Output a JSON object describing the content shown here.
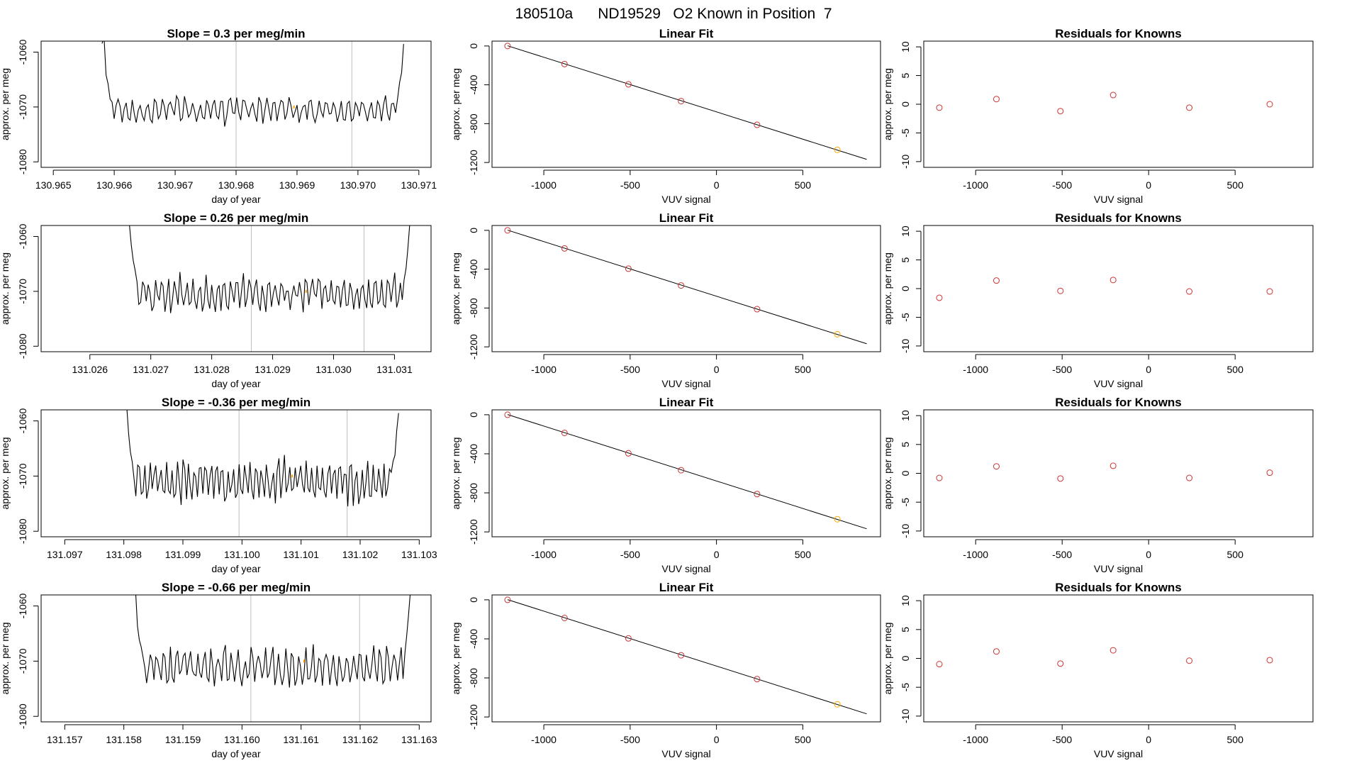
{
  "figure_title": "180510a      ND19529   O2 Known in Position  7",
  "colors": {
    "line": "#000000",
    "known_point": "#cd3333",
    "current_known": "#ffa500",
    "guide_line": "#bebebe",
    "frame": "#000000"
  },
  "chart_data": [
    {
      "type": "line",
      "row": 1,
      "panel": "time-series",
      "title": "Slope =  0.3  per meg/min",
      "xlabel": "day of year",
      "ylabel": "approx. per meg",
      "xlim": [
        130.9648,
        130.9712
      ],
      "ylim": [
        -1081,
        -1058
      ],
      "xticks": [
        130.965,
        130.966,
        130.967,
        130.968,
        130.969,
        130.97,
        130.971
      ],
      "xtick_labels": [
        "130.965",
        "130.966",
        "130.967",
        "130.968",
        "130.969",
        "130.970",
        "130.971"
      ],
      "yticks": [
        -1080,
        -1070,
        -1060
      ],
      "ytick_labels": [
        "-1080",
        "-1070",
        "-1060"
      ],
      "vlines": [
        130.968,
        130.9699
      ],
      "marker": {
        "x": 130.96895,
        "y": -1070
      },
      "trace": {
        "x_start": 130.9658,
        "x_end": 130.97075,
        "start_curve": [
          -1058,
          -1058,
          -1064,
          -1066
        ],
        "end_curve": [
          -1068,
          -1066,
          -1063,
          -1058
        ],
        "base": -1070.5,
        "amp": 2.4,
        "freq": 1.0,
        "seed": 3
      }
    },
    {
      "type": "line",
      "row": 1,
      "panel": "linear-fit",
      "title": "Linear Fit",
      "xlabel": "VUV signal",
      "ylabel": "approx. per meg",
      "xlim": [
        -1300,
        950
      ],
      "ylim": [
        -1250,
        50
      ],
      "xticks": [
        -1000,
        -500,
        0,
        500
      ],
      "xtick_labels": [
        "-1000",
        "-500",
        "0",
        "500"
      ],
      "yticks": [
        -1200,
        -800,
        -400,
        0
      ],
      "ytick_labels": [
        "-1200",
        "-800",
        "-400",
        "0"
      ],
      "fit_line": {
        "x": [
          -1210,
          870
        ],
        "y": [
          2,
          -1168
        ]
      },
      "points": {
        "x": [
          -1210,
          -880,
          -510,
          -205,
          235,
          700
        ],
        "y": [
          0,
          -186,
          -395,
          -568,
          -812,
          -1070
        ]
      },
      "current_index": 5
    },
    {
      "type": "scatter",
      "row": 1,
      "panel": "residuals",
      "title": "Residuals for Knowns",
      "xlabel": "VUV signal",
      "ylabel": "approx. per meg",
      "xlim": [
        -1300,
        950
      ],
      "ylim": [
        -11,
        11
      ],
      "xticks": [
        -1000,
        -500,
        0,
        500
      ],
      "xtick_labels": [
        "-1000",
        "-500",
        "0",
        "500"
      ],
      "yticks": [
        -10,
        -5,
        0,
        5,
        10
      ],
      "ytick_labels": [
        "-10",
        "-5",
        "0",
        "5",
        "10"
      ],
      "points": {
        "x": [
          -1210,
          -880,
          -510,
          -205,
          235,
          700
        ],
        "y": [
          -0.6,
          0.9,
          -1.2,
          1.6,
          -0.6,
          0.0
        ]
      }
    },
    {
      "type": "line",
      "row": 2,
      "panel": "time-series",
      "title": "Slope =  0.26  per meg/min",
      "xlabel": "day of year",
      "ylabel": "approx. per meg",
      "xlim": [
        131.0252,
        131.0316
      ],
      "ylim": [
        -1081,
        -1058
      ],
      "xticks": [
        131.026,
        131.027,
        131.028,
        131.029,
        131.03,
        131.031
      ],
      "xtick_labels": [
        "131.026",
        "131.027",
        "131.028",
        "131.029",
        "131.030",
        "131.031"
      ],
      "yticks": [
        -1080,
        -1070,
        -1060
      ],
      "ytick_labels": [
        "-1080",
        "-1070",
        "-1060"
      ],
      "vlines": [
        131.02865,
        131.0305
      ],
      "marker": {
        "x": 131.02955,
        "y": -1070
      },
      "trace": {
        "x_start": 131.02665,
        "x_end": 131.03125,
        "start_curve": [
          -1058,
          -1061,
          -1064,
          -1066
        ],
        "end_curve": [
          -1068,
          -1066,
          -1062,
          -1058
        ],
        "base": -1070.5,
        "amp": 3.2,
        "freq": 1.1,
        "seed": 7
      }
    },
    {
      "type": "line",
      "row": 2,
      "panel": "linear-fit",
      "title": "Linear Fit",
      "xlabel": "VUV signal",
      "ylabel": "approx. per meg",
      "xlim": [
        -1300,
        950
      ],
      "ylim": [
        -1250,
        50
      ],
      "xticks": [
        -1000,
        -500,
        0,
        500
      ],
      "xtick_labels": [
        "-1000",
        "-500",
        "0",
        "500"
      ],
      "yticks": [
        -1200,
        -800,
        -400,
        0
      ],
      "ytick_labels": [
        "-1200",
        "-800",
        "-400",
        "0"
      ],
      "fit_line": {
        "x": [
          -1210,
          870
        ],
        "y": [
          2,
          -1168
        ]
      },
      "points": {
        "x": [
          -1210,
          -880,
          -510,
          -205,
          235,
          700
        ],
        "y": [
          0,
          -186,
          -395,
          -568,
          -812,
          -1070
        ]
      },
      "current_index": 5
    },
    {
      "type": "scatter",
      "row": 2,
      "panel": "residuals",
      "title": "Residuals for Knowns",
      "xlabel": "VUV signal",
      "ylabel": "approx. per meg",
      "xlim": [
        -1300,
        950
      ],
      "ylim": [
        -11,
        11
      ],
      "xticks": [
        -1000,
        -500,
        0,
        500
      ],
      "xtick_labels": [
        "-1000",
        "-500",
        "0",
        "500"
      ],
      "yticks": [
        -10,
        -5,
        0,
        5,
        10
      ],
      "ytick_labels": [
        "-10",
        "-5",
        "0",
        "5",
        "10"
      ],
      "points": {
        "x": [
          -1210,
          -880,
          -510,
          -205,
          235,
          700
        ],
        "y": [
          -1.6,
          1.4,
          -0.4,
          1.5,
          -0.5,
          -0.5
        ]
      }
    },
    {
      "type": "line",
      "row": 3,
      "panel": "time-series",
      "title": "Slope =  -0.36  per meg/min",
      "xlabel": "day of year",
      "ylabel": "approx. per meg",
      "xlim": [
        131.0966,
        131.1032
      ],
      "ylim": [
        -1081,
        -1058
      ],
      "xticks": [
        131.097,
        131.098,
        131.099,
        131.1,
        131.101,
        131.102,
        131.103
      ],
      "xtick_labels": [
        "131.097",
        "131.098",
        "131.099",
        "131.100",
        "131.101",
        "131.102",
        "131.103"
      ],
      "yticks": [
        -1080,
        -1070,
        -1060
      ],
      "ytick_labels": [
        "-1080",
        "-1070",
        "-1060"
      ],
      "vlines": [
        131.09995,
        131.10178
      ],
      "marker": {
        "x": 131.10085,
        "y": -1070
      },
      "trace": {
        "x_start": 131.09805,
        "x_end": 131.10265,
        "start_curve": [
          -1058,
          -1062,
          -1065,
          -1067
        ],
        "end_curve": [
          -1068,
          -1066,
          -1062,
          -1058
        ],
        "base": -1071,
        "amp": 3.8,
        "freq": 1.2,
        "seed": 11
      }
    },
    {
      "type": "line",
      "row": 3,
      "panel": "linear-fit",
      "title": "Linear Fit",
      "xlabel": "VUV signal",
      "ylabel": "approx. per meg",
      "xlim": [
        -1300,
        950
      ],
      "ylim": [
        -1250,
        50
      ],
      "xticks": [
        -1000,
        -500,
        0,
        500
      ],
      "xtick_labels": [
        "-1000",
        "-500",
        "0",
        "500"
      ],
      "yticks": [
        -1200,
        -800,
        -400,
        0
      ],
      "ytick_labels": [
        "-1200",
        "-800",
        "-400",
        "0"
      ],
      "fit_line": {
        "x": [
          -1210,
          870
        ],
        "y": [
          2,
          -1168
        ]
      },
      "points": {
        "x": [
          -1210,
          -880,
          -510,
          -205,
          235,
          700
        ],
        "y": [
          0,
          -186,
          -395,
          -568,
          -812,
          -1070
        ]
      },
      "current_index": 5
    },
    {
      "type": "scatter",
      "row": 3,
      "panel": "residuals",
      "title": "Residuals for Knowns",
      "xlabel": "VUV signal",
      "ylabel": "approx. per meg",
      "xlim": [
        -1300,
        950
      ],
      "ylim": [
        -11,
        11
      ],
      "xticks": [
        -1000,
        -500,
        0,
        500
      ],
      "xtick_labels": [
        "-1000",
        "-500",
        "0",
        "500"
      ],
      "yticks": [
        -10,
        -5,
        0,
        5,
        10
      ],
      "ytick_labels": [
        "-10",
        "-5",
        "0",
        "5",
        "10"
      ],
      "points": {
        "x": [
          -1210,
          -880,
          -510,
          -205,
          235,
          700
        ],
        "y": [
          -0.8,
          1.2,
          -0.9,
          1.3,
          -0.8,
          0.1
        ]
      }
    },
    {
      "type": "line",
      "row": 4,
      "panel": "time-series",
      "title": "Slope =  -0.66  per meg/min",
      "xlabel": "day of year",
      "ylabel": "approx. per meg",
      "xlim": [
        131.1566,
        131.1632
      ],
      "ylim": [
        -1081,
        -1058
      ],
      "xticks": [
        131.157,
        131.158,
        131.159,
        131.16,
        131.161,
        131.162,
        131.163
      ],
      "xtick_labels": [
        "131.157",
        "131.158",
        "131.159",
        "131.160",
        "131.161",
        "131.162",
        "131.163"
      ],
      "yticks": [
        -1080,
        -1070,
        -1060
      ],
      "ytick_labels": [
        "-1080",
        "-1070",
        "-1060"
      ],
      "vlines": [
        131.16015,
        131.16199
      ],
      "marker": {
        "x": 131.16105,
        "y": -1070
      },
      "trace": {
        "x_start": 131.1582,
        "x_end": 131.16285,
        "start_curve": [
          -1058,
          -1063,
          -1066,
          -1068
        ],
        "end_curve": [
          -1068,
          -1066,
          -1062,
          -1058
        ],
        "base": -1071,
        "amp": 3.6,
        "freq": 1.0,
        "seed": 17
      }
    },
    {
      "type": "line",
      "row": 4,
      "panel": "linear-fit",
      "title": "Linear Fit",
      "xlabel": "VUV signal",
      "ylabel": "approx. per meg",
      "xlim": [
        -1300,
        950
      ],
      "ylim": [
        -1250,
        50
      ],
      "xticks": [
        -1000,
        -500,
        0,
        500
      ],
      "xtick_labels": [
        "-1000",
        "-500",
        "0",
        "500"
      ],
      "yticks": [
        -1200,
        -800,
        -400,
        0
      ],
      "ytick_labels": [
        "-1200",
        "-800",
        "-400",
        "0"
      ],
      "fit_line": {
        "x": [
          -1210,
          870
        ],
        "y": [
          2,
          -1168
        ]
      },
      "points": {
        "x": [
          -1210,
          -880,
          -510,
          -205,
          235,
          700
        ],
        "y": [
          0,
          -186,
          -395,
          -568,
          -812,
          -1070
        ]
      },
      "current_index": 5
    },
    {
      "type": "scatter",
      "row": 4,
      "panel": "residuals",
      "title": "Residuals for Knowns",
      "xlabel": "VUV signal",
      "ylabel": "approx. per meg",
      "xlim": [
        -1300,
        950
      ],
      "ylim": [
        -11,
        11
      ],
      "xticks": [
        -1000,
        -500,
        0,
        500
      ],
      "xtick_labels": [
        "-1000",
        "-500",
        "0",
        "500"
      ],
      "yticks": [
        -10,
        -5,
        0,
        5,
        10
      ],
      "ytick_labels": [
        "-10",
        "-5",
        "0",
        "5",
        "10"
      ],
      "points": {
        "x": [
          -1210,
          -880,
          -510,
          -205,
          235,
          700
        ],
        "y": [
          -1.0,
          1.2,
          -0.9,
          1.4,
          -0.4,
          -0.3
        ]
      }
    }
  ]
}
